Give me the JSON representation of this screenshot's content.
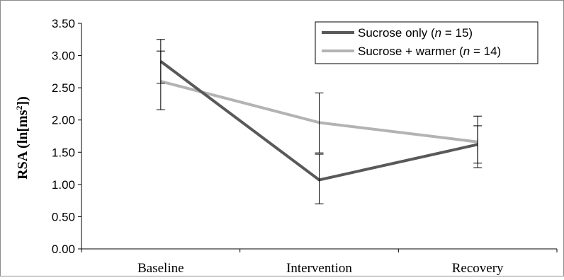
{
  "chart_data": {
    "type": "line",
    "categories": [
      "Baseline",
      "Intervention",
      "Recovery"
    ],
    "ylabel_main": "RSA (ln[ms",
    "ylabel_sup": "2",
    "ylabel_end": "])",
    "ylim": [
      0,
      3.5
    ],
    "yticks": [
      "0.00",
      "0.50",
      "1.00",
      "1.50",
      "2.00",
      "2.50",
      "3.00",
      "3.50"
    ],
    "legend_position": "top-right",
    "series": [
      {
        "legend_prefix": "Sucrose only (",
        "legend_n": "n",
        "legend_suffix": " = 15)",
        "color": "#595959",
        "values": [
          2.91,
          1.07,
          1.62
        ],
        "err_upper": [
          3.25,
          1.47,
          1.91
        ],
        "err_lower": [
          2.57,
          0.7,
          1.33
        ]
      },
      {
        "legend_prefix": "Sucrose + warmer (",
        "legend_n": "n",
        "legend_suffix": " = 14)",
        "color": "#b3b3b3",
        "values": [
          2.6,
          1.96,
          1.66
        ],
        "err_upper": [
          3.07,
          2.42,
          2.06
        ],
        "err_lower": [
          2.16,
          1.49,
          1.26
        ]
      }
    ]
  }
}
